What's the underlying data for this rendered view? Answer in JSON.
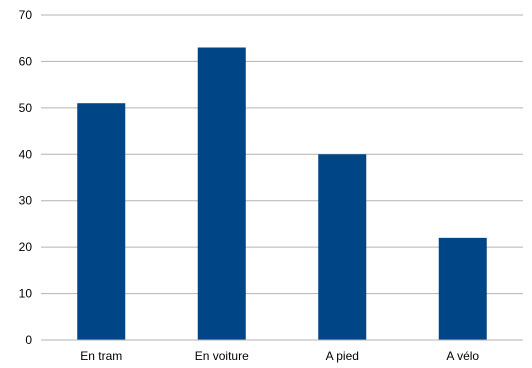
{
  "chart_data": {
    "type": "bar",
    "title": "",
    "xlabel": "",
    "ylabel": "",
    "categories": [
      "En tram",
      "En voiture",
      "A pied",
      "A vélo"
    ],
    "values": [
      51,
      63,
      40,
      22
    ],
    "ylim": [
      0,
      70
    ],
    "yticks": [
      "0",
      "10",
      "20",
      "30",
      "40",
      "50",
      "60",
      "70"
    ],
    "grid": true,
    "legend": "none",
    "bar_color": "#004586",
    "grid_color": "#b3b3b3"
  }
}
